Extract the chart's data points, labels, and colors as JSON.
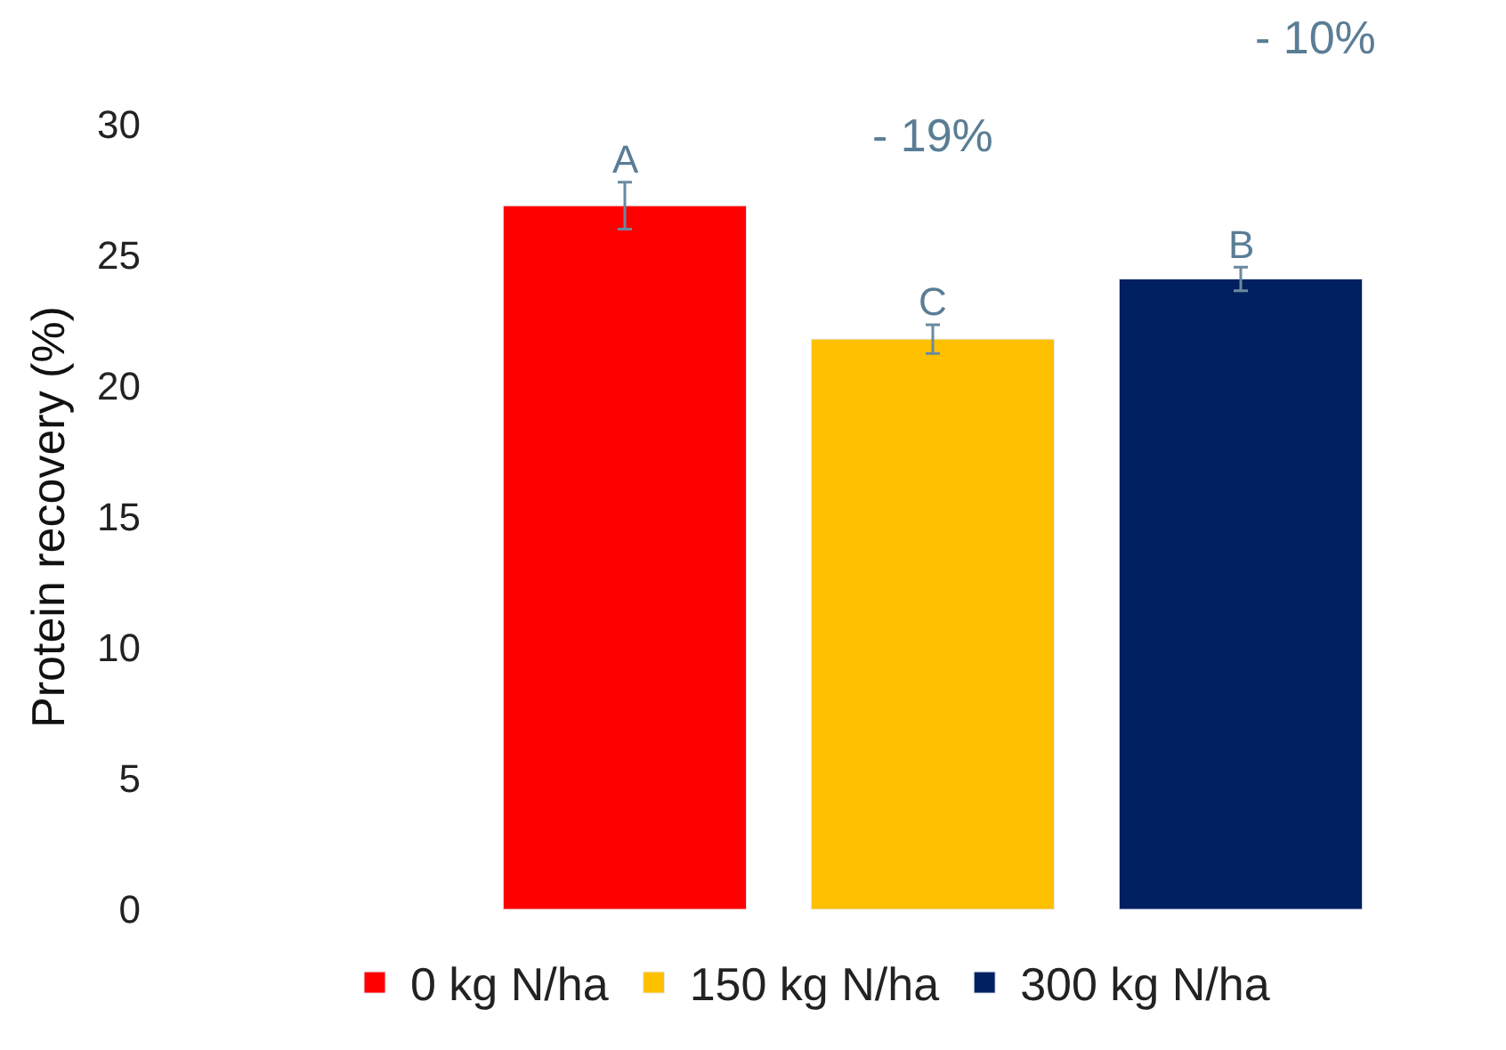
{
  "chart_data": {
    "type": "bar",
    "ylabel": "Protein recovery (%)",
    "categories": [
      null
    ],
    "series": [
      {
        "name": "0 kg N/ha",
        "color": "#ff0000",
        "values": [
          26.9
        ],
        "errors": [
          0.9
        ]
      },
      {
        "name": "150 kg N/ha",
        "color": "#ffc000",
        "values": [
          21.8
        ],
        "errors": [
          0.55
        ]
      },
      {
        "name": "300 kg N/ha",
        "color": "#002060",
        "values": [
          24.1
        ],
        "errors": [
          0.45
        ]
      }
    ],
    "annotations": [
      "A",
      "C",
      "B",
      "- 19%",
      "- 10%"
    ],
    "ylim": [
      0,
      30
    ],
    "yticks": [
      0,
      5,
      10,
      15,
      20,
      25,
      30
    ],
    "legend": "bottom"
  }
}
